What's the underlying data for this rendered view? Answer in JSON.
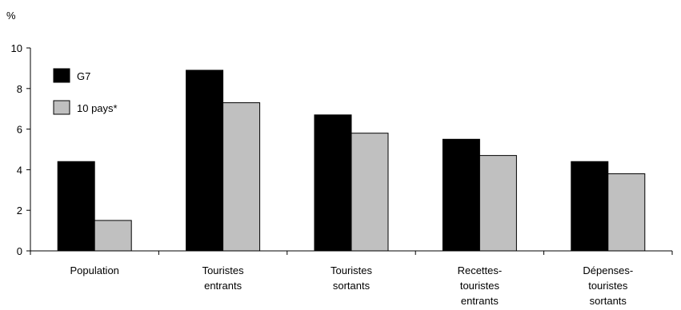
{
  "chart_data": {
    "type": "bar",
    "unit_label": "%",
    "categories": [
      [
        "Population"
      ],
      [
        "Touristes",
        "entrants"
      ],
      [
        "Touristes",
        "sortants"
      ],
      [
        "Recettes-",
        "touristes",
        "entrants"
      ],
      [
        "Dépenses-",
        "touristes",
        "sortants"
      ]
    ],
    "series": [
      {
        "name": "G7",
        "color": "#000000",
        "values": [
          4.4,
          8.9,
          6.7,
          5.5,
          4.4
        ]
      },
      {
        "name": "10 pays*",
        "color": "#c0c0c0",
        "values": [
          1.5,
          7.3,
          5.8,
          4.7,
          3.8
        ]
      }
    ],
    "ylim": [
      0,
      10
    ],
    "yticks": [
      0,
      2,
      4,
      6,
      8,
      10
    ],
    "legend_position": "top-left",
    "grid": false
  }
}
